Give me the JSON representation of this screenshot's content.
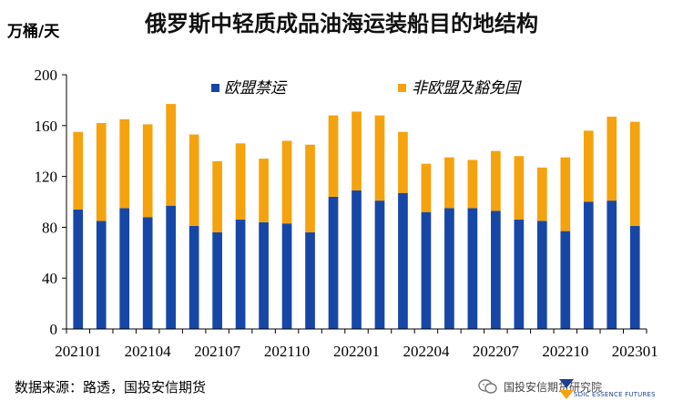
{
  "title": "俄罗斯中轻质成品油海运装船目的地结构",
  "unit": "万桶/天",
  "source": "数据来源：路透，国投安信期货",
  "watermark": {
    "text": "国投安信期货研究院",
    "logo_subtext": "SDIC ESSENCE FUTURES"
  },
  "colors": {
    "eu": "#1747A6",
    "non_eu": "#F5A20F",
    "axis": "#000000"
  },
  "chart_data": {
    "type": "bar",
    "stacked": true,
    "categories": [
      "202101",
      "202102",
      "202103",
      "202104",
      "202105",
      "202106",
      "202107",
      "202108",
      "202109",
      "202110",
      "202111",
      "202112",
      "202201",
      "202202",
      "202203",
      "202204",
      "202205",
      "202206",
      "202207",
      "202208",
      "202209",
      "202210",
      "202211",
      "202212",
      "202301"
    ],
    "tick_labels": [
      "202101",
      "202104",
      "202107",
      "202110",
      "202201",
      "202204",
      "202207",
      "202210",
      "202301"
    ],
    "series": [
      {
        "name": "欧盟禁运",
        "values": [
          94,
          85,
          95,
          88,
          97,
          81,
          76,
          86,
          84,
          83,
          76,
          104,
          109,
          101,
          107,
          92,
          95,
          95,
          93,
          86,
          85,
          77,
          100,
          101,
          81
        ]
      },
      {
        "name": "非欧盟及豁免国",
        "values": [
          61,
          77,
          70,
          73,
          80,
          72,
          56,
          60,
          50,
          65,
          69,
          64,
          62,
          67,
          48,
          38,
          40,
          38,
          47,
          50,
          42,
          58,
          56,
          66,
          82
        ]
      }
    ],
    "ylim": [
      0,
      200
    ],
    "yticks": [
      0,
      40,
      80,
      120,
      160,
      200
    ],
    "xlabel": "",
    "ylabel": "万桶/天",
    "legend_position": "top"
  }
}
